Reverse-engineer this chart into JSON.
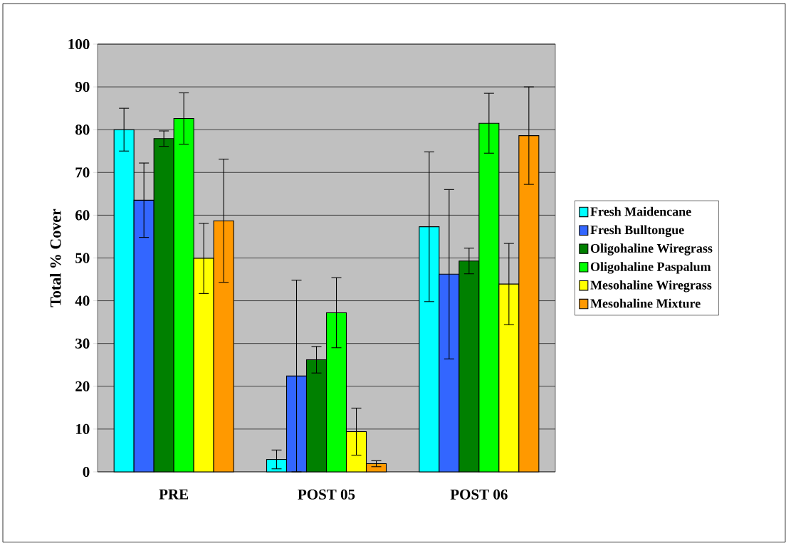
{
  "chart_data": {
    "type": "bar",
    "ylabel": "Total % Cover",
    "categories": [
      "PRE",
      "POST 05",
      "POST 06"
    ],
    "series": [
      {
        "name": "Fresh Maidencane",
        "color": "#00ffff",
        "values": [
          80.0,
          2.9,
          57.3
        ],
        "errors": [
          5.0,
          2.2,
          17.5
        ]
      },
      {
        "name": "Fresh Bulltongue",
        "color": "#3366ff",
        "values": [
          63.5,
          22.4,
          46.2
        ],
        "errors": [
          8.7,
          22.4,
          19.8
        ]
      },
      {
        "name": "Oligohaline Wiregrass",
        "color": "#008000",
        "values": [
          77.9,
          26.2,
          49.3
        ],
        "errors": [
          1.8,
          3.1,
          3.0
        ]
      },
      {
        "name": "Oligohaline Paspalum",
        "color": "#00ff00",
        "values": [
          82.6,
          37.2,
          81.5
        ],
        "errors": [
          6.0,
          8.2,
          7.0
        ]
      },
      {
        "name": "Mesohaline Wiregrass",
        "color": "#ffff00",
        "values": [
          49.9,
          9.4,
          43.9
        ],
        "errors": [
          8.2,
          5.5,
          9.5
        ]
      },
      {
        "name": "Mesohaline Mixture",
        "color": "#ff9900",
        "values": [
          58.7,
          1.9,
          78.6
        ],
        "errors": [
          14.4,
          0.7,
          11.4
        ]
      }
    ],
    "ylim": [
      0,
      100
    ],
    "yticks": [
      0,
      10,
      20,
      30,
      40,
      50,
      60,
      70,
      80,
      90,
      100
    ],
    "grid": "y",
    "legend": "right"
  }
}
